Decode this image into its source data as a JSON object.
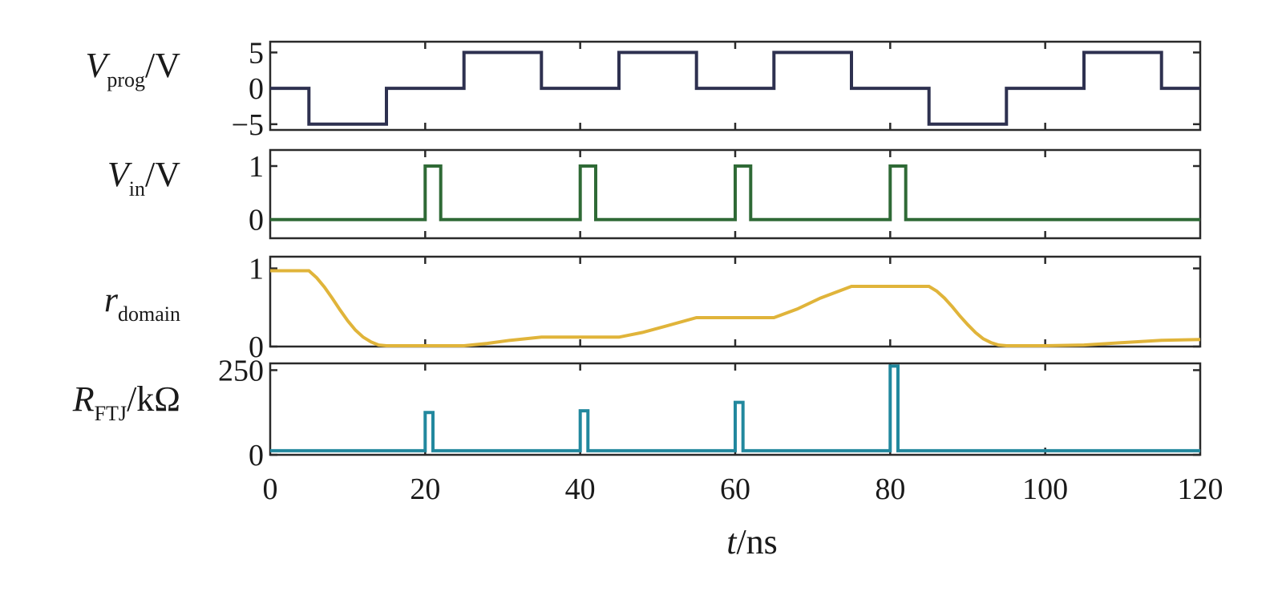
{
  "chart_data": [
    {
      "type": "line",
      "ylabel_main": "V",
      "ylabel_sub": "prog",
      "ylabel_rest": "/V",
      "ylim": [
        -5.8,
        6.5
      ],
      "yticks": [
        5,
        0,
        -5
      ],
      "yticklabels": [
        "5",
        "0",
        "−5"
      ],
      "xlim": [
        0,
        120
      ],
      "color": "#2e3150",
      "x": [
        0,
        5,
        5,
        15,
        15,
        25,
        25,
        35,
        35,
        45,
        45,
        55,
        55,
        65,
        65,
        75,
        75,
        85,
        85,
        95,
        95,
        105,
        105,
        115,
        115,
        120
      ],
      "y": [
        0,
        0,
        -5,
        -5,
        0,
        0,
        5,
        5,
        0,
        0,
        5,
        5,
        0,
        0,
        5,
        5,
        0,
        0,
        -5,
        -5,
        0,
        0,
        5,
        5,
        0,
        0
      ]
    },
    {
      "type": "line",
      "ylabel_main": "V",
      "ylabel_sub": "in",
      "ylabel_rest": "/V",
      "ylim": [
        -0.35,
        1.3
      ],
      "yticks": [
        1,
        0
      ],
      "yticklabels": [
        "1",
        "0"
      ],
      "xlim": [
        0,
        120
      ],
      "color": "#2f6a36",
      "x": [
        0,
        20,
        20,
        22,
        22,
        40,
        40,
        42,
        42,
        60,
        60,
        62,
        62,
        80,
        80,
        82,
        82,
        120
      ],
      "y": [
        0,
        0,
        1,
        1,
        0,
        0,
        1,
        1,
        0,
        0,
        1,
        1,
        0,
        0,
        1,
        1,
        0,
        0
      ]
    },
    {
      "type": "line",
      "ylabel_main": "r",
      "ylabel_sub": "domain",
      "ylabel_rest": "",
      "ylim": [
        0,
        1.15
      ],
      "yticks": [
        1,
        0
      ],
      "yticklabels": [
        "1",
        "0"
      ],
      "xlim": [
        0,
        120
      ],
      "color": "#e0b43a",
      "x": [
        0,
        5,
        6,
        7,
        8,
        9,
        10,
        11,
        12,
        13,
        14,
        15,
        17,
        20,
        25,
        28,
        31,
        35,
        45,
        48,
        51,
        55,
        65,
        68,
        71,
        75,
        85,
        86,
        87,
        88,
        89,
        90,
        91,
        92,
        93,
        94,
        95,
        100,
        105,
        110,
        115,
        120
      ],
      "y": [
        0.97,
        0.97,
        0.88,
        0.76,
        0.62,
        0.47,
        0.33,
        0.21,
        0.12,
        0.06,
        0.02,
        0.01,
        0.01,
        0.01,
        0.01,
        0.04,
        0.08,
        0.12,
        0.12,
        0.18,
        0.26,
        0.37,
        0.37,
        0.48,
        0.62,
        0.77,
        0.77,
        0.71,
        0.62,
        0.51,
        0.39,
        0.28,
        0.18,
        0.1,
        0.05,
        0.02,
        0.01,
        0.01,
        0.02,
        0.05,
        0.08,
        0.09
      ]
    },
    {
      "type": "line",
      "ylabel_main": "R",
      "ylabel_sub": "FTJ",
      "ylabel_rest": "/kΩ",
      "ylim": [
        0,
        270
      ],
      "yticks": [
        250,
        0
      ],
      "yticklabels": [
        "250",
        "0"
      ],
      "xlim": [
        0,
        120
      ],
      "xticks": [
        0,
        20,
        40,
        60,
        80,
        100,
        120
      ],
      "xticklabels": [
        "0",
        "20",
        "40",
        "60",
        "80",
        "100",
        "120"
      ],
      "xlabel_main": "t",
      "xlabel_rest": "/ns",
      "color": "#22889e",
      "x": [
        0,
        20,
        20,
        21,
        21,
        40,
        40,
        41,
        41,
        60,
        60,
        61,
        61,
        80,
        80,
        81,
        81,
        120
      ],
      "y": [
        12,
        12,
        125,
        125,
        12,
        12,
        130,
        130,
        12,
        12,
        155,
        155,
        12,
        12,
        262,
        262,
        12,
        12
      ]
    }
  ]
}
